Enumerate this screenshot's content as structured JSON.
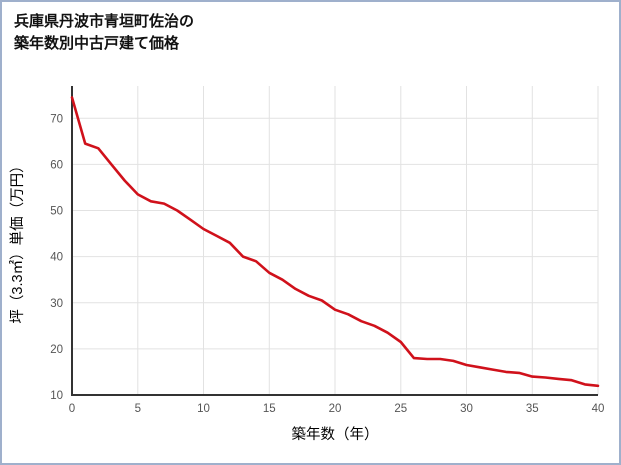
{
  "frame": {
    "border_color": "#9fb0cc"
  },
  "title": {
    "line1": "兵庫県丹波市青垣町佐治の",
    "line2": "築年数別中古戸建て価格"
  },
  "chart_data": {
    "type": "line",
    "title": "兵庫県丹波市青垣町佐治の築年数別中古戸建て価格",
    "xlabel": "築年数（年）",
    "ylabel": "坪（3.3㎡）単価（万円）",
    "x": [
      0,
      1,
      2,
      3,
      4,
      5,
      6,
      7,
      8,
      9,
      10,
      11,
      12,
      13,
      14,
      15,
      16,
      17,
      18,
      19,
      20,
      21,
      22,
      23,
      24,
      25,
      26,
      27,
      28,
      29,
      30,
      31,
      32,
      33,
      34,
      35,
      36,
      37,
      38,
      39,
      40
    ],
    "values": [
      74.5,
      64.5,
      63.5,
      60,
      56.5,
      53.5,
      52,
      51.5,
      50,
      48,
      46,
      44.5,
      43,
      40,
      39,
      36.5,
      35,
      33,
      31.5,
      30.5,
      28.5,
      27.5,
      26,
      25,
      23.5,
      21.5,
      18,
      17.8,
      17.8,
      17.4,
      16.5,
      16,
      15.5,
      15,
      14.8,
      14,
      13.8,
      13.5,
      13.2,
      12.3,
      12
    ],
    "xlim": [
      0,
      40
    ],
    "ylim": [
      10,
      77
    ],
    "xticks": [
      0,
      5,
      10,
      15,
      20,
      25,
      30,
      35,
      40
    ],
    "yticks": [
      10,
      20,
      30,
      40,
      50,
      60,
      70
    ],
    "grid": true,
    "legend": false,
    "line_color": "#d0111b",
    "grid_color": "#e2e2e2",
    "axis_color": "#333333",
    "tick_label_color": "#555555"
  }
}
